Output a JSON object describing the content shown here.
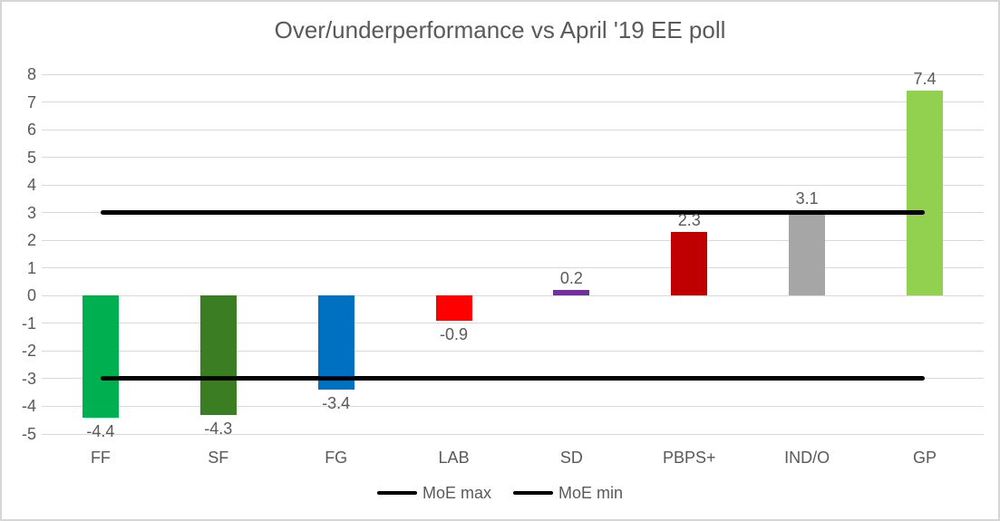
{
  "chart_data": {
    "type": "bar",
    "title": "Over/underperformance vs April '19 EE poll",
    "categories": [
      "FF",
      "SF",
      "FG",
      "LAB",
      "SD",
      "PBPS+",
      "IND/O",
      "GP"
    ],
    "values": [
      -4.4,
      -4.3,
      -3.4,
      -0.9,
      0.2,
      2.3,
      3.1,
      7.4
    ],
    "data_labels": [
      "-4.4",
      "-4.3",
      "-3.4",
      "-0.9",
      "0.2",
      "2.3",
      "3.1",
      "7.4"
    ],
    "bar_colors": [
      "#00B050",
      "#3B7D23",
      "#0070C0",
      "#FF0000",
      "#7030A0",
      "#C00000",
      "#A6A6A6",
      "#92D050"
    ],
    "reference_lines": [
      {
        "name": "MoE max",
        "value": 3,
        "color": "#000000"
      },
      {
        "name": "MoE min",
        "value": -3,
        "color": "#000000"
      }
    ],
    "y_axis": {
      "min": -5,
      "max": 8,
      "step": 1,
      "tick_labels": [
        "8",
        "7",
        "6",
        "5",
        "4",
        "3",
        "2",
        "1",
        "0",
        "-1",
        "-2",
        "-3",
        "-4",
        "-5"
      ]
    },
    "grid": true,
    "legend": {
      "position": "bottom",
      "entries": [
        "MoE max",
        "MoE min"
      ]
    },
    "colors": {
      "text": "#595959",
      "gridline": "#D9D9D9",
      "frame_border": "#D6D6D6",
      "background": "#FFFFFF"
    }
  }
}
